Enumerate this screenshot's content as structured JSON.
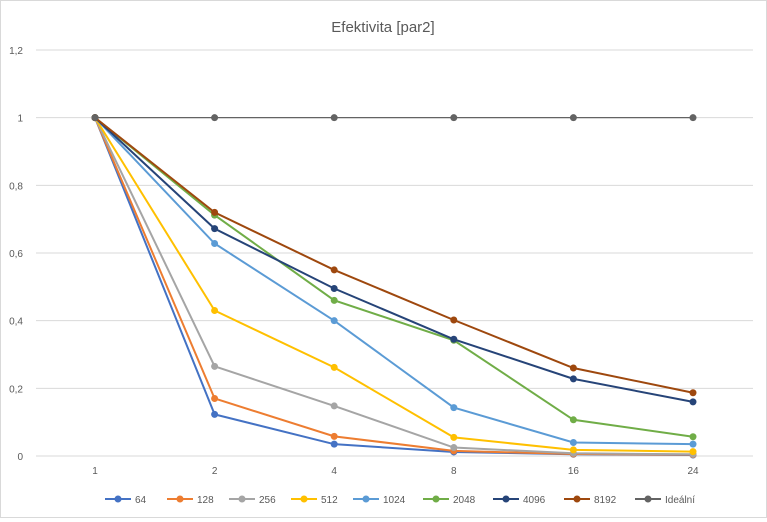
{
  "chart_data": {
    "type": "line",
    "title": "Efektivita  [par2]",
    "categories": [
      "1",
      "2",
      "4",
      "8",
      "16",
      "24"
    ],
    "ylim": [
      0,
      1.2
    ],
    "yticks": [
      "0",
      "0,2",
      "0,4",
      "0,6",
      "0,8",
      "1",
      "1,2"
    ],
    "ytick_values": [
      0,
      0.2,
      0.4,
      0.6,
      0.8,
      1.0,
      1.2
    ],
    "grid": true,
    "legend_position": "bottom",
    "series": [
      {
        "name": "64",
        "color": "#4472c4",
        "values": [
          1,
          0.123,
          0.035,
          0.012,
          0.005,
          0.003
        ]
      },
      {
        "name": "128",
        "color": "#ed7d31",
        "values": [
          1,
          0.17,
          0.058,
          0.015,
          0.006,
          0.004
        ]
      },
      {
        "name": "256",
        "color": "#a5a5a5",
        "values": [
          1,
          0.265,
          0.148,
          0.025,
          0.008,
          0.005
        ]
      },
      {
        "name": "512",
        "color": "#ffc000",
        "values": [
          1,
          0.43,
          0.262,
          0.055,
          0.018,
          0.013
        ]
      },
      {
        "name": "1024",
        "color": "#5b9bd5",
        "values": [
          1,
          0.628,
          0.4,
          0.143,
          0.04,
          0.035
        ]
      },
      {
        "name": "2048",
        "color": "#70ad47",
        "values": [
          1,
          0.712,
          0.46,
          0.342,
          0.107,
          0.057
        ]
      },
      {
        "name": "4096",
        "color": "#264478",
        "values": [
          1,
          0.672,
          0.495,
          0.345,
          0.228,
          0.16
        ]
      },
      {
        "name": "8192",
        "color": "#9e480e",
        "values": [
          1,
          0.72,
          0.55,
          0.402,
          0.26,
          0.187
        ]
      },
      {
        "name": "Ideální",
        "color": "#636363",
        "values": [
          1,
          1,
          1,
          1,
          1,
          1
        ]
      }
    ]
  }
}
